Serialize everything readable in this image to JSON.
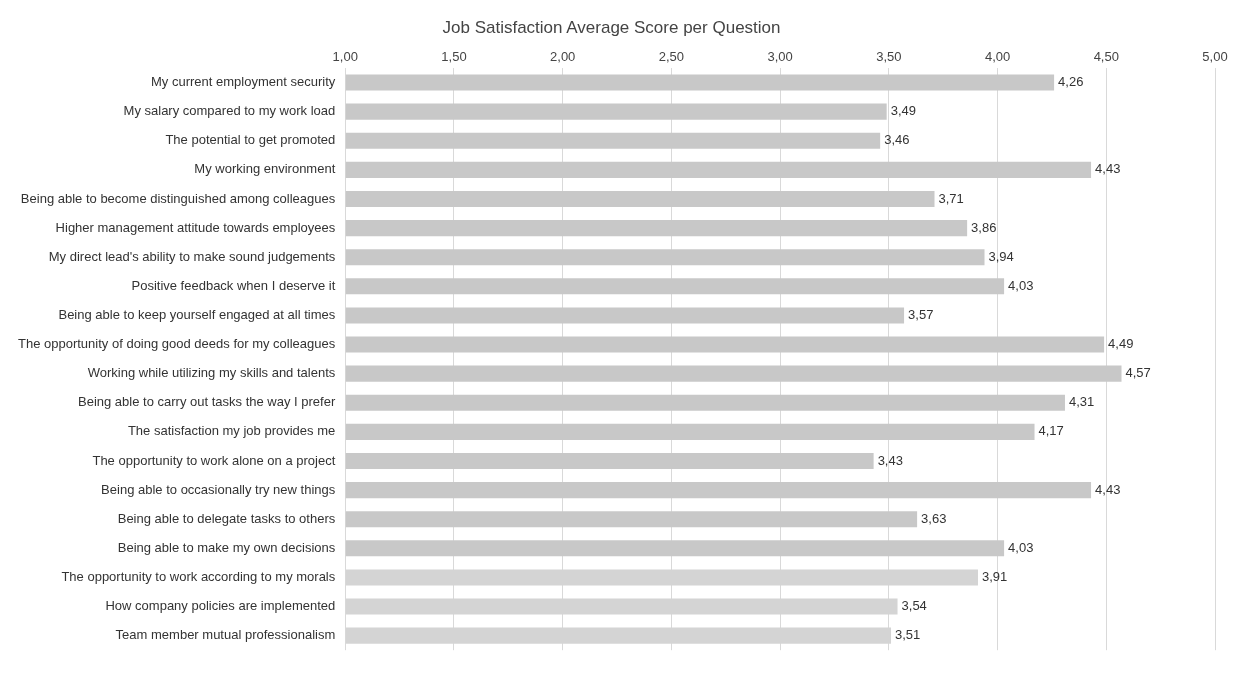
{
  "chart_data": {
    "type": "bar",
    "orientation": "horizontal",
    "title": "Job Satisfaction Average Score per Question",
    "categories": [
      "My current employment security",
      "My salary compared to my work load",
      "The potential to get promoted",
      "My working environment",
      "Being able to become distinguished among colleagues",
      "Higher management attitude towards employees",
      "My direct lead's ability to make sound judgements",
      "Positive feedback when I deserve it",
      "Being able to keep yourself engaged at all times",
      "The opportunity of doing good deeds for my colleagues",
      "Working while utilizing my skills and talents",
      "Being able to carry out tasks the way I prefer",
      "The satisfaction my job provides me",
      "The opportunity to work alone on a project",
      "Being able to occasionally try new things",
      "Being able to delegate tasks to others",
      "Being able to make my own decisions",
      "The opportunity to work according to my morals",
      "How company policies are implemented",
      "Team member mutual professionalism"
    ],
    "values": [
      4.26,
      3.49,
      3.46,
      4.43,
      3.71,
      3.86,
      3.94,
      4.03,
      3.57,
      4.49,
      4.57,
      4.31,
      4.17,
      3.43,
      4.43,
      3.63,
      4.03,
      3.91,
      3.54,
      3.51
    ],
    "value_labels": [
      "4,26",
      "3,49",
      "3,46",
      "4,43",
      "3,71",
      "3,86",
      "3,94",
      "4,03",
      "3,57",
      "4,49",
      "4,57",
      "4,31",
      "4,17",
      "3,43",
      "4,43",
      "3,63",
      "4,03",
      "3,91",
      "3,54",
      "3,51"
    ],
    "colors": [
      "#c8c8c8",
      "#c8c8c8",
      "#c8c8c8",
      "#c8c8c8",
      "#c8c8c8",
      "#c8c8c8",
      "#c8c8c8",
      "#c8c8c8",
      "#c8c8c8",
      "#c8c8c8",
      "#c8c8c8",
      "#c8c8c8",
      "#c8c8c8",
      "#c8c8c8",
      "#c8c8c8",
      "#c8c8c8",
      "#c8c8c8",
      "#d4d4d4",
      "#d4d4d4",
      "#d4d4d4"
    ],
    "xlim": [
      1,
      5
    ],
    "xticks": [
      {
        "value": 1,
        "label": "1,00"
      },
      {
        "value": 1.5,
        "label": "1,50"
      },
      {
        "value": 2,
        "label": "2,00"
      },
      {
        "value": 2.5,
        "label": "2,50"
      },
      {
        "value": 3,
        "label": "3,00"
      },
      {
        "value": 3.5,
        "label": "3,50"
      },
      {
        "value": 4,
        "label": "4,00"
      },
      {
        "value": 4.5,
        "label": "4,50"
      },
      {
        "value": 5,
        "label": "5,00"
      }
    ],
    "grid": "x",
    "legend": false
  }
}
